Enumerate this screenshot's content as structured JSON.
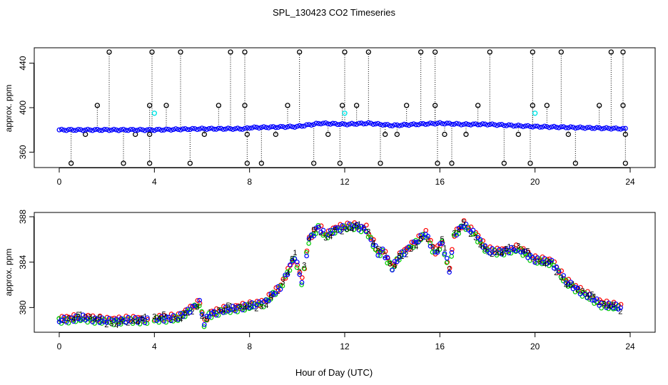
{
  "title": "SPL_130423  CO2 Timeseries",
  "xlabel": "Hour of Day (UTC)",
  "colors": {
    "outlier": "#000000",
    "main": "#0000ff",
    "flag": "#00e5e5",
    "s1": "#ff0000",
    "s2": "#00cc00",
    "s3": "#0000ff",
    "s4": "#00cccc",
    "s5": "#cc00cc"
  },
  "chart_data": [
    {
      "type": "scatter",
      "panel": "top",
      "ylabel": "approx. ppm",
      "xlim": [
        0,
        24
      ],
      "ylim": [
        350,
        450
      ],
      "xticks": [
        0,
        4,
        8,
        12,
        16,
        20,
        24
      ],
      "yticks": [
        360,
        400,
        440
      ],
      "x_knots": [
        0,
        2,
        4,
        6,
        7.8,
        8,
        10,
        11,
        12,
        13,
        14,
        15,
        16,
        17,
        18,
        19,
        20,
        22,
        23.8
      ],
      "y_knots": [
        380,
        380,
        380,
        381,
        381,
        382,
        383,
        386,
        385,
        386,
        384,
        385,
        386,
        385,
        385,
        384,
        383,
        382,
        381
      ],
      "outliers_high": [
        2.1,
        3.9,
        5.1,
        7.2,
        7.8,
        10.1,
        12.0,
        13.0,
        15.2,
        15.8,
        18.1,
        19.9,
        21.1,
        23.2,
        23.7
      ],
      "outliers_low": [
        0.5,
        2.7,
        3.8,
        5.5,
        7.9,
        8.5,
        10.7,
        11.8,
        13.5,
        15.9,
        16.5,
        18.7,
        19.8,
        21.7,
        23.8
      ],
      "outliers_mid402": [
        1.6,
        3.8,
        4.5,
        6.7,
        7.8,
        9.6,
        11.9,
        12.5,
        14.6,
        15.8,
        17.6,
        19.9,
        20.5,
        22.7,
        23.7
      ],
      "outliers_mid376": [
        1.1,
        3.2,
        3.8,
        6.1,
        7.9,
        9.1,
        11.3,
        13.7,
        14.2,
        16.2,
        17.1,
        19.3,
        21.4,
        23.8
      ],
      "flagged": [
        [
          4.0,
          395
        ],
        [
          12.0,
          395
        ],
        [
          20.0,
          395
        ]
      ]
    },
    {
      "type": "scatter",
      "panel": "bottom",
      "ylabel": "approx. ppm",
      "xlim": [
        0,
        24
      ],
      "ylim": [
        378.2,
        388
      ],
      "xticks": [
        0,
        4,
        8,
        12,
        16,
        20,
        24
      ],
      "yticks": [
        380,
        384,
        388
      ],
      "series_labels": [
        "1",
        "2",
        "3",
        "4",
        "5"
      ],
      "gap": [
        3.8,
        4.0
      ],
      "x_knots": [
        0,
        1,
        2,
        3,
        3.8,
        4.0,
        5,
        5.9,
        6.1,
        6.3,
        7,
        7.9,
        8.6,
        9.3,
        9.9,
        10.2,
        10.5,
        10.9,
        11.2,
        11.6,
        12.4,
        12.9,
        13.4,
        13.6,
        14.0,
        14.3,
        14.9,
        15.4,
        15.8,
        16.1,
        16.4,
        16.6,
        17.0,
        17.5,
        18.0,
        18.5,
        19.3,
        20.0,
        20.7,
        21.3,
        22.0,
        22.8,
        23.6
      ],
      "y_knots": [
        378.9,
        379.1,
        378.8,
        378.9,
        378.9,
        379.0,
        379.1,
        380.4,
        378.6,
        379.4,
        379.8,
        380.1,
        380.4,
        381.8,
        384.5,
        382.3,
        386.0,
        387.1,
        386.3,
        386.9,
        387.2,
        386.9,
        384.8,
        385.0,
        383.5,
        384.5,
        385.6,
        386.5,
        384.8,
        385.7,
        383.3,
        386.4,
        387.3,
        386.4,
        385.0,
        384.9,
        385.2,
        384.2,
        384.0,
        382.3,
        381.3,
        380.3,
        380.0
      ]
    }
  ]
}
